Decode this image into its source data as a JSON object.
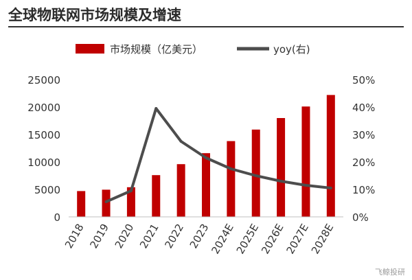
{
  "chart_data": {
    "type": "bar",
    "title": "全球物联网市场规模及增速",
    "categories": [
      "2018",
      "2019",
      "2020",
      "2021",
      "2022",
      "2023",
      "2024E",
      "2025E",
      "2026E",
      "2027E",
      "2028E"
    ],
    "series": [
      {
        "name": "市场规模（亿美元）",
        "type": "bar",
        "axis": "left",
        "color": "#c00000",
        "values": [
          4700,
          4950,
          5400,
          7600,
          9600,
          11600,
          13800,
          15900,
          18000,
          20100,
          22200
        ]
      },
      {
        "name": "yoy(右)",
        "type": "line",
        "axis": "right",
        "color": "#4d4d4d",
        "values": [
          null,
          5.5,
          9.5,
          39.5,
          27.5,
          21.5,
          17.5,
          15,
          13,
          11.5,
          10.5
        ]
      }
    ],
    "y_left": {
      "min": 0,
      "max": 25000,
      "ticks": [
        "0",
        "5000",
        "10000",
        "15000",
        "20000",
        "25000"
      ],
      "tick_values": [
        0,
        5000,
        10000,
        15000,
        20000,
        25000
      ]
    },
    "y_right": {
      "min": 0,
      "max": 50,
      "ticks": [
        "0%",
        "10%",
        "20%",
        "30%",
        "40%",
        "50%"
      ],
      "tick_values": [
        0,
        10,
        20,
        30,
        40,
        50
      ]
    },
    "legend_position": "top",
    "grid": false
  },
  "watermark": "飞鲸投研"
}
